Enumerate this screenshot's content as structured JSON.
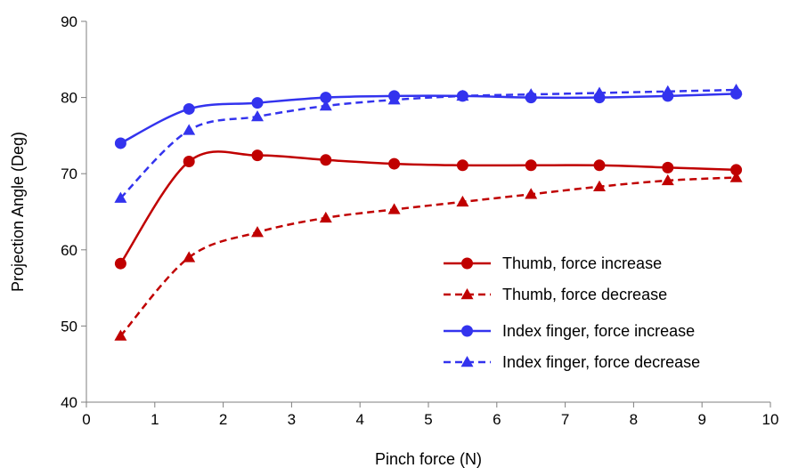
{
  "chart_data": {
    "type": "line",
    "title": "",
    "xlabel": "Pinch force (N)",
    "ylabel": "Projection Angle (Deg)",
    "xlim": [
      0,
      10
    ],
    "ylim": [
      40,
      90
    ],
    "xticks": [
      0,
      1,
      2,
      3,
      4,
      5,
      6,
      7,
      8,
      9,
      10
    ],
    "yticks": [
      40,
      50,
      60,
      70,
      80,
      90
    ],
    "grid": false,
    "legend_position": "lower-right",
    "x": [
      0.5,
      1.5,
      2.5,
      3.5,
      4.5,
      5.5,
      6.5,
      7.5,
      8.5,
      9.5
    ],
    "series": [
      {
        "name": "Thumb, force increase",
        "color": "#c00000",
        "marker": "circle",
        "dash": "solid",
        "values": [
          58.2,
          71.6,
          72.4,
          71.8,
          71.3,
          71.1,
          71.1,
          71.1,
          70.8,
          70.5
        ]
      },
      {
        "name": "Thumb, force decrease",
        "color": "#c00000",
        "marker": "triangle",
        "dash": "dashed",
        "values": [
          48.7,
          59.0,
          62.3,
          64.2,
          65.3,
          66.3,
          67.3,
          68.3,
          69.1,
          69.5
        ]
      },
      {
        "name": "Index finger, force increase",
        "color": "#3333ee",
        "marker": "circle",
        "dash": "solid",
        "values": [
          74.0,
          78.5,
          79.3,
          80.0,
          80.2,
          80.2,
          80.0,
          80.0,
          80.2,
          80.5
        ]
      },
      {
        "name": "Index finger, force decrease",
        "color": "#3333ee",
        "marker": "triangle",
        "dash": "dashed",
        "values": [
          66.8,
          75.7,
          77.5,
          78.9,
          79.7,
          80.2,
          80.4,
          80.6,
          80.8,
          81.0
        ]
      }
    ]
  }
}
